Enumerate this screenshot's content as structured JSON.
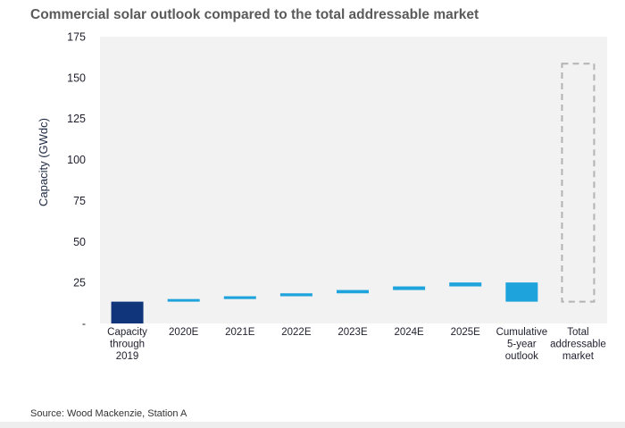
{
  "title": "Commercial solar outlook compared to the total addressable market",
  "source": "Source: Wood Mackenzie, Station A",
  "colors": {
    "plot_bg": "#f2f2f2",
    "dark_bar": "#10357a",
    "light_bar": "#1ea3dc",
    "tam_outline": "#b3b3b3"
  },
  "chart_data": {
    "type": "bar",
    "subtype": "waterfall",
    "title": "Commercial solar outlook compared to the total addressable market",
    "xlabel": "",
    "ylabel": "Capacity (GWdc)",
    "ylim": [
      0,
      175
    ],
    "yticks": [
      {
        "value": 0,
        "label": "-"
      },
      {
        "value": 25,
        "label": "25"
      },
      {
        "value": 50,
        "label": "50"
      },
      {
        "value": 75,
        "label": "75"
      },
      {
        "value": 100,
        "label": "100"
      },
      {
        "value": 125,
        "label": "125"
      },
      {
        "value": 150,
        "label": "150"
      },
      {
        "value": 175,
        "label": "175"
      }
    ],
    "categories": [
      [
        "Capacity",
        "through",
        "2019"
      ],
      [
        "2020E"
      ],
      [
        "2021E"
      ],
      [
        "2022E"
      ],
      [
        "2023E"
      ],
      [
        "2024E"
      ],
      [
        "2025E"
      ],
      [
        "Cumulative",
        "5-year",
        "outlook"
      ],
      [
        "Total",
        "addressable",
        "market"
      ]
    ],
    "bars": [
      {
        "category": "Capacity through 2019",
        "base": 0,
        "top": 13.3,
        "style": "dark"
      },
      {
        "category": "2020E",
        "base": 13.3,
        "top": 14.9,
        "style": "light"
      },
      {
        "category": "2021E",
        "base": 14.9,
        "top": 16.6,
        "style": "light"
      },
      {
        "category": "2022E",
        "base": 16.6,
        "top": 18.4,
        "style": "light"
      },
      {
        "category": "2023E",
        "base": 18.4,
        "top": 20.4,
        "style": "light"
      },
      {
        "category": "2024E",
        "base": 20.4,
        "top": 22.6,
        "style": "light"
      },
      {
        "category": "2025E",
        "base": 22.6,
        "top": 25.0,
        "style": "light"
      },
      {
        "category": "Cumulative 5-year outlook",
        "base": 13.3,
        "top": 25.0,
        "style": "light"
      },
      {
        "category": "Total addressable market",
        "base": 13.3,
        "top": 158.5,
        "style": "dashed"
      }
    ],
    "grid": false,
    "legend": "none"
  }
}
